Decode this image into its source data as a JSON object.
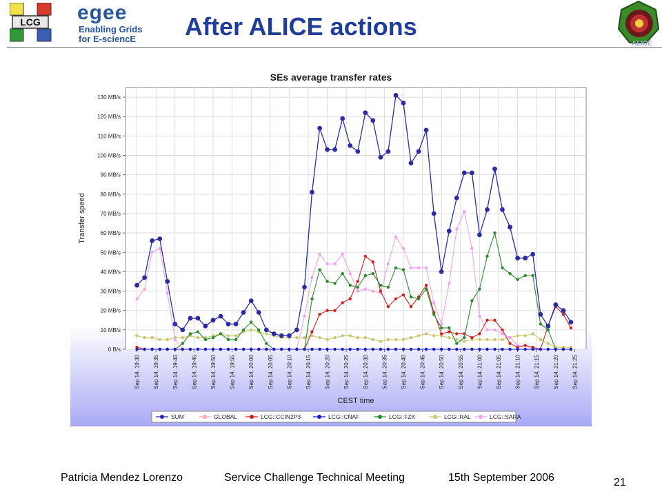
{
  "slide": {
    "title": "After ALICE actions",
    "footer_author": "Patricia Mendez Lorenzo",
    "footer_meeting": "Service Challenge Technical Meeting",
    "footer_date": "15th September 2006",
    "page_number": "21"
  },
  "logos": {
    "lcg_text": "LCG",
    "egee_word": "egee",
    "egee_line1": "Enabling Grids",
    "egee_line2": "for E-sciencE",
    "alice_text": "ALICE"
  },
  "colors": {
    "title": "#1f3d99",
    "egee_blue": "#27569c",
    "plot_background": "#ffffff",
    "chart_gradient_bottom": "#a9a9f5"
  },
  "chart_data": {
    "type": "line",
    "title": "SEs average transfer rates",
    "xlabel": "CEST time",
    "ylabel": "Transfer speed",
    "ylim": [
      0,
      135
    ],
    "y_ticks": [
      {
        "v": 0,
        "label": "0 B/s"
      },
      {
        "v": 10,
        "label": "10 MB/s"
      },
      {
        "v": 20,
        "label": "20 MB/s"
      },
      {
        "v": 30,
        "label": "30 MB/s"
      },
      {
        "v": 40,
        "label": "40 MB/s"
      },
      {
        "v": 50,
        "label": "50 MB/s"
      },
      {
        "v": 60,
        "label": "60 MB/s"
      },
      {
        "v": 70,
        "label": "70 MB/s"
      },
      {
        "v": 80,
        "label": "80 MB/s"
      },
      {
        "v": 90,
        "label": "90 MB/s"
      },
      {
        "v": 100,
        "label": "100 MB/s"
      },
      {
        "v": 110,
        "label": "110 MB/s"
      },
      {
        "v": 120,
        "label": "120 MB/s"
      },
      {
        "v": 130,
        "label": "130 MB/s"
      }
    ],
    "x_ticks": [
      {
        "t": 0,
        "label": "Sep 14, 19:30"
      },
      {
        "t": 5,
        "label": "Sep 14, 19:35"
      },
      {
        "t": 10,
        "label": "Sep 14, 19:40"
      },
      {
        "t": 15,
        "label": "Sep 14, 19:45"
      },
      {
        "t": 20,
        "label": "Sep 14, 19:50"
      },
      {
        "t": 25,
        "label": "Sep 14, 19:55"
      },
      {
        "t": 30,
        "label": "Sep 14, 20:00"
      },
      {
        "t": 35,
        "label": "Sep 14, 20:05"
      },
      {
        "t": 40,
        "label": "Sep 14, 20:10"
      },
      {
        "t": 45,
        "label": "Sep 14, 20:15"
      },
      {
        "t": 50,
        "label": "Sep 14, 20:20"
      },
      {
        "t": 55,
        "label": "Sep 14, 20:25"
      },
      {
        "t": 60,
        "label": "Sep 14, 20:30"
      },
      {
        "t": 65,
        "label": "Sep 14, 20:35"
      },
      {
        "t": 70,
        "label": "Sep 14, 20:40"
      },
      {
        "t": 75,
        "label": "Sep 14, 20:45"
      },
      {
        "t": 80,
        "label": "Sep 14, 20:50"
      },
      {
        "t": 85,
        "label": "Sep 14, 20:55"
      },
      {
        "t": 90,
        "label": "Sep 14, 21:00"
      },
      {
        "t": 95,
        "label": "Sep 14, 21:05"
      },
      {
        "t": 100,
        "label": "Sep 14, 21:10"
      },
      {
        "t": 105,
        "label": "Sep 14, 21:15"
      },
      {
        "t": 110,
        "label": "Sep 14, 21:20"
      },
      {
        "t": 115,
        "label": "Sep 14, 21:25"
      }
    ],
    "x": [
      0,
      2,
      4,
      6,
      8,
      10,
      12,
      14,
      16,
      18,
      20,
      22,
      24,
      26,
      28,
      30,
      32,
      34,
      36,
      38,
      40,
      42,
      44,
      46,
      48,
      50,
      52,
      54,
      56,
      58,
      60,
      62,
      64,
      66,
      68,
      70,
      72,
      74,
      76,
      78,
      80,
      82,
      84,
      86,
      88,
      90,
      92,
      94,
      96,
      98,
      100,
      102,
      104,
      106,
      108,
      110,
      112,
      114
    ],
    "legend_position": "bottom",
    "grid": true,
    "series": [
      {
        "name": "SUM",
        "color": "#2b2ba3",
        "values": [
          33,
          37,
          56,
          57,
          35,
          13,
          10,
          16,
          16,
          12,
          15,
          17,
          13,
          13,
          19,
          25,
          19,
          10,
          8,
          7,
          7,
          10,
          32,
          81,
          114,
          103,
          103,
          119,
          105,
          102,
          122,
          118,
          99,
          102,
          131,
          127,
          96,
          102,
          113,
          70,
          40,
          61,
          78,
          91,
          91,
          59,
          72,
          93,
          72,
          63,
          47,
          47,
          49,
          18,
          12,
          23,
          20,
          14
        ]
      },
      {
        "name": "GLOBAL",
        "color": "#f4a6b8",
        "values": [
          0,
          0,
          0,
          0,
          0,
          0,
          0,
          0,
          0,
          0,
          0,
          0,
          0,
          0,
          0,
          0,
          0,
          0,
          0,
          0,
          0,
          0,
          0,
          0,
          0,
          0,
          0,
          0,
          0,
          0,
          0,
          0,
          0,
          0,
          0,
          0,
          0,
          0,
          0,
          0,
          0,
          0,
          0,
          0,
          0,
          0,
          0,
          0,
          0,
          0,
          0,
          0,
          0,
          0,
          0,
          0,
          0,
          0
        ]
      },
      {
        "name": "LCG::CCIN2P3",
        "color": "#cc2222",
        "values": [
          1,
          0,
          0,
          0,
          0,
          0,
          0,
          0,
          0,
          0,
          0,
          0,
          0,
          0,
          0,
          0,
          0,
          0,
          0,
          0,
          0,
          0,
          0,
          9,
          18,
          20,
          20,
          24,
          26,
          35,
          48,
          45,
          30,
          22,
          26,
          28,
          22,
          27,
          33,
          19,
          8,
          9,
          8,
          8,
          6,
          8,
          15,
          15,
          10,
          3,
          1,
          2,
          1,
          0,
          12,
          22,
          18,
          11
        ]
      },
      {
        "name": "LCG::CNAF",
        "color": "#1a1acc",
        "values": [
          0,
          0,
          0,
          0,
          0,
          0,
          0,
          0,
          0,
          0,
          0,
          0,
          0,
          0,
          0,
          0,
          0,
          0,
          0,
          0,
          0,
          0,
          0,
          0,
          0,
          0,
          0,
          0,
          0,
          0,
          0,
          0,
          0,
          0,
          0,
          0,
          0,
          0,
          0,
          0,
          0,
          0,
          0,
          0,
          0,
          0,
          0,
          0,
          0,
          0,
          0,
          0,
          0,
          0,
          0,
          0,
          0,
          0
        ]
      },
      {
        "name": "LCG::FZK",
        "color": "#2a8a2a",
        "values": [
          0,
          0,
          0,
          0,
          0,
          0,
          3,
          8,
          9,
          5,
          6,
          8,
          5,
          5,
          10,
          14,
          10,
          3,
          0,
          0,
          0,
          0,
          0,
          26,
          41,
          35,
          34,
          39,
          33,
          32,
          38,
          39,
          33,
          32,
          42,
          41,
          27,
          26,
          31,
          18,
          11,
          11,
          3,
          6,
          25,
          31,
          48,
          60,
          42,
          39,
          36,
          38,
          38,
          13,
          10,
          0,
          0,
          0
        ]
      },
      {
        "name": "LCG::RAL",
        "color": "#c8c86e",
        "values": [
          7,
          6,
          6,
          5,
          5,
          6,
          6,
          7,
          6,
          6,
          7,
          8,
          7,
          7,
          9,
          10,
          9,
          8,
          7,
          6,
          6,
          6,
          6,
          7,
          6,
          5,
          6,
          7,
          7,
          6,
          6,
          5,
          4,
          5,
          5,
          5,
          6,
          7,
          8,
          7,
          7,
          6,
          5,
          4,
          5,
          5,
          5,
          5,
          5,
          6,
          7,
          7,
          8,
          5,
          3,
          1,
          1,
          1
        ]
      },
      {
        "name": "LCG::SARA",
        "color": "#f0a2f0",
        "values": [
          26,
          31,
          50,
          52,
          29,
          5,
          0,
          0,
          0,
          0,
          0,
          0,
          0,
          0,
          0,
          0,
          0,
          0,
          0,
          0,
          0,
          0,
          17,
          37,
          49,
          44,
          44,
          49,
          39,
          30,
          31,
          30,
          29,
          44,
          58,
          52,
          42,
          42,
          42,
          24,
          13,
          34,
          62,
          71,
          52,
          17,
          10,
          10,
          8,
          6,
          2,
          2,
          0,
          0,
          0,
          0,
          0,
          0
        ]
      }
    ]
  }
}
